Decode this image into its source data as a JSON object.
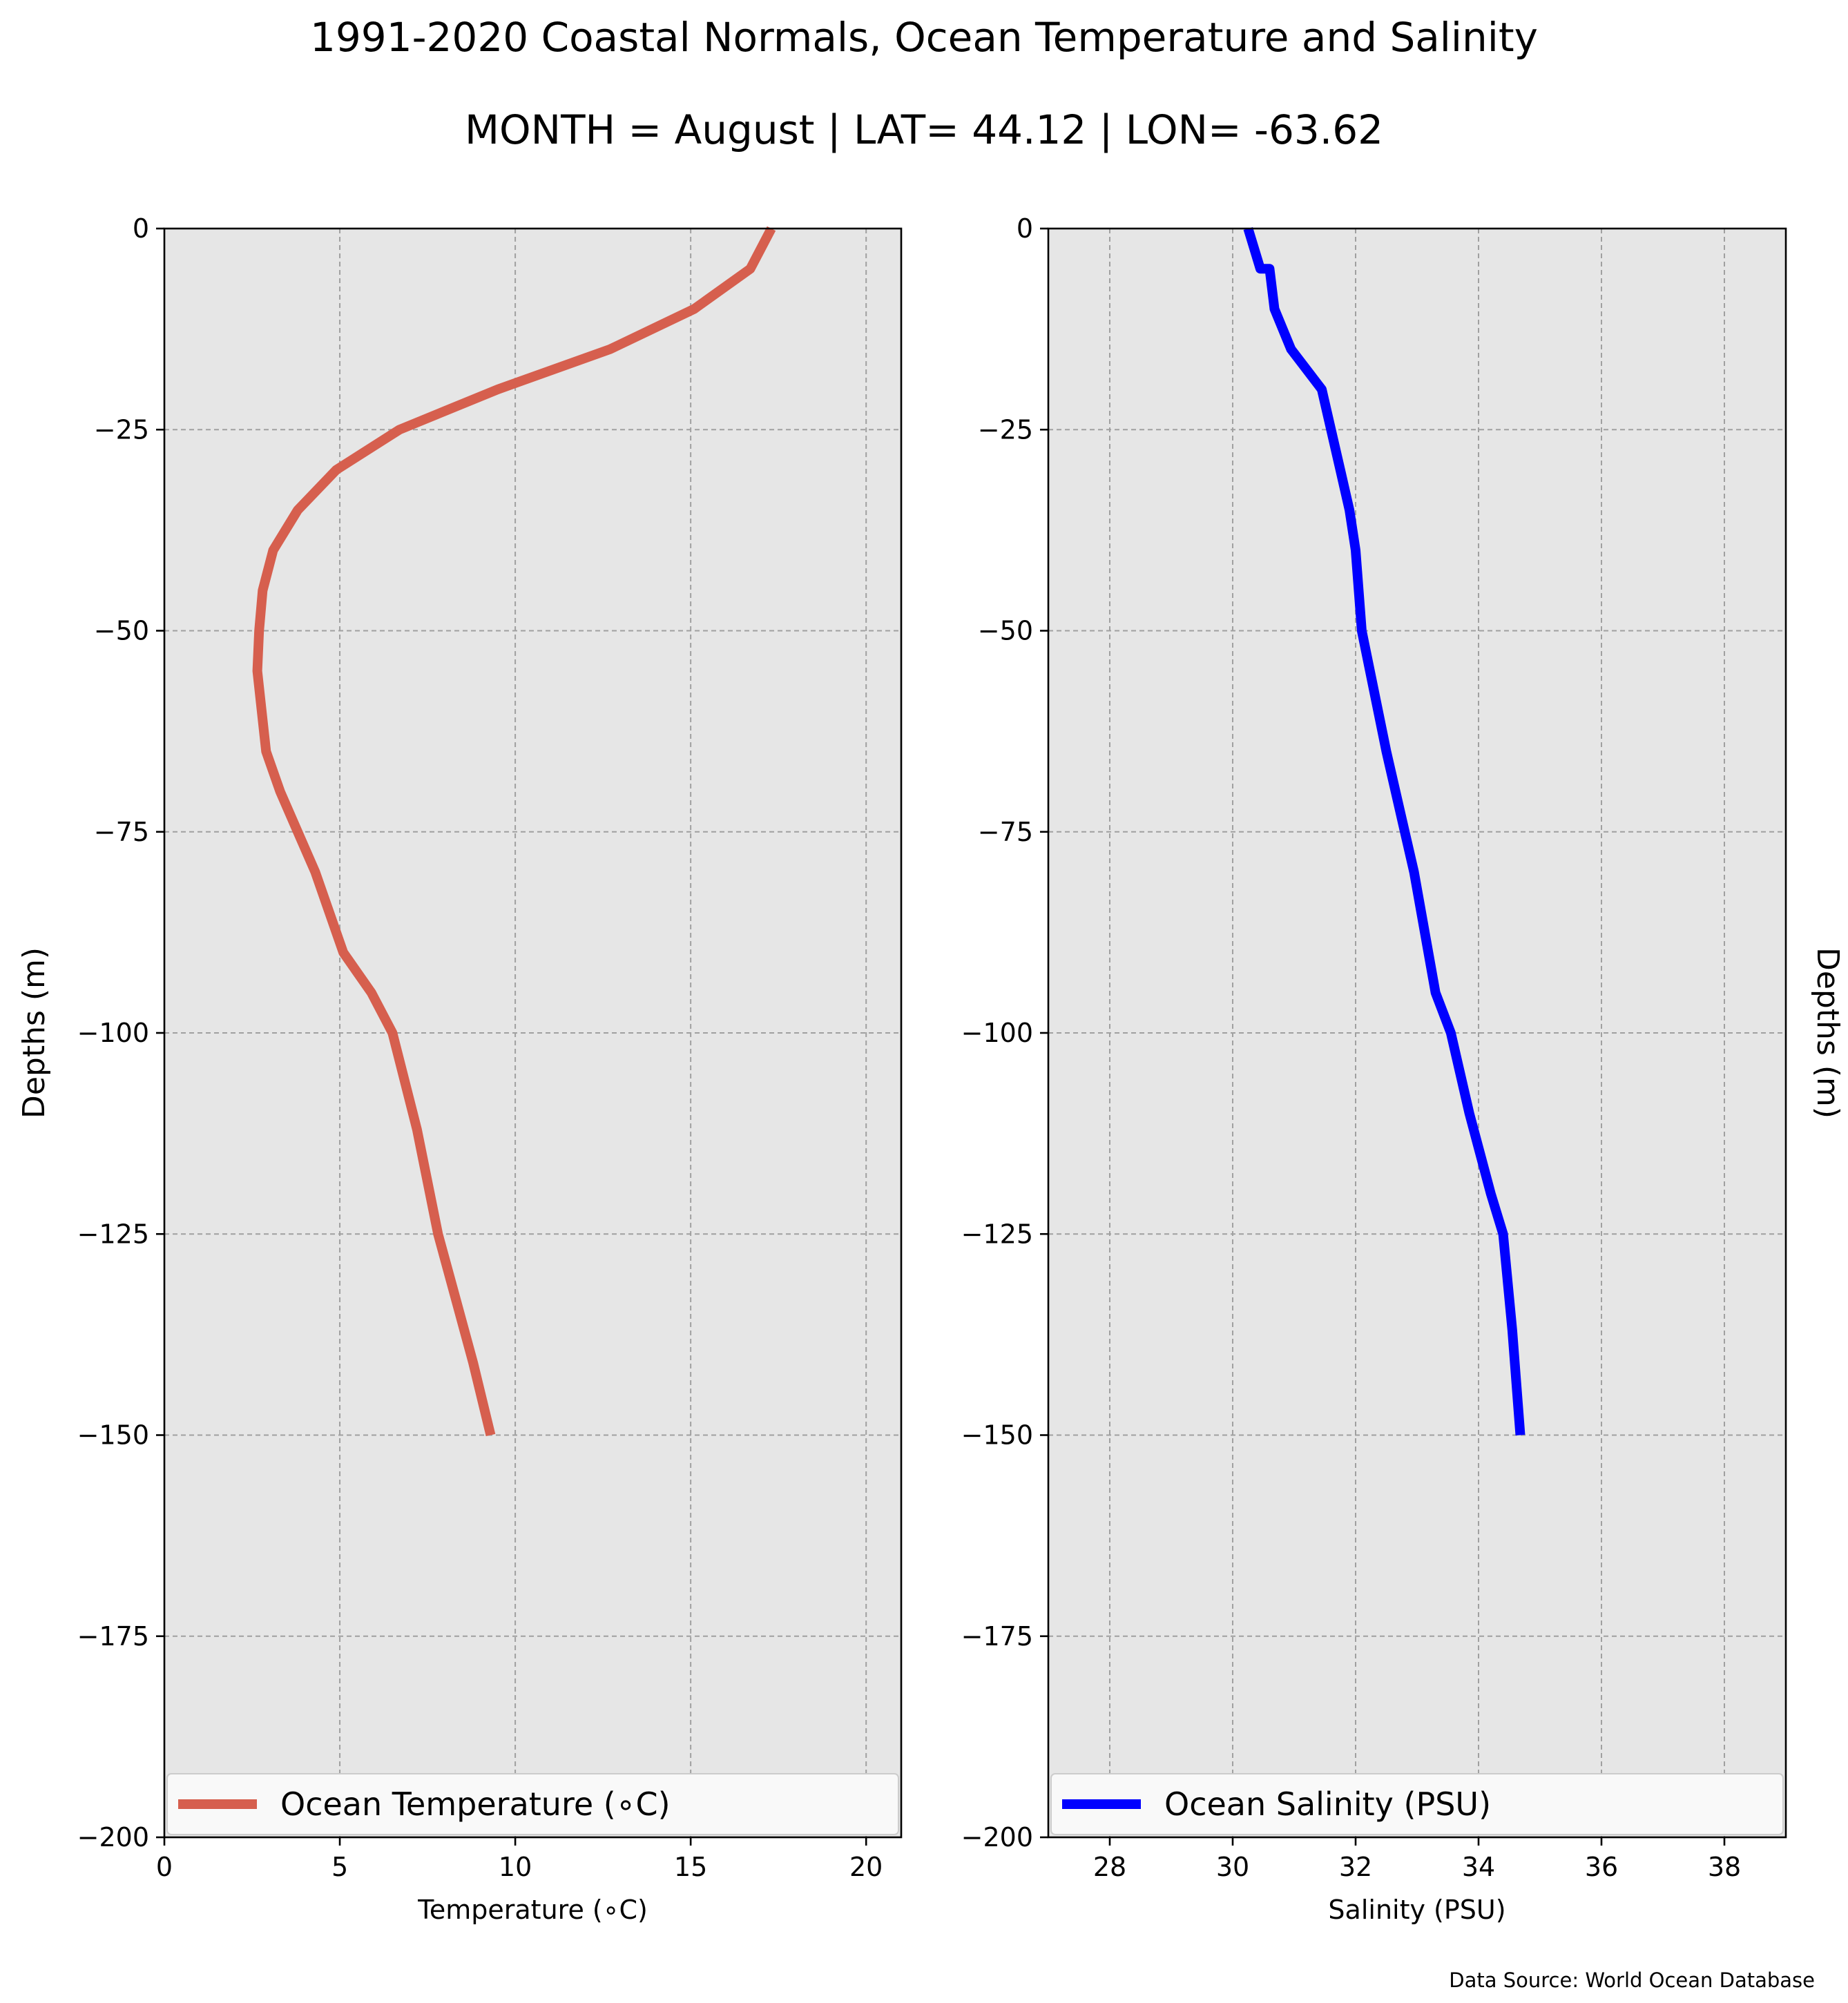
{
  "figure": {
    "title": "1991-2020 Coastal Normals, Ocean Temperature and Salinity",
    "subtitle": "MONTH = August | LAT= 44.12 | LON= -63.62",
    "source_note": "Data Source: World Ocean Database",
    "background": "#e6e6e6"
  },
  "chart_data": [
    {
      "type": "line",
      "title": "",
      "xlabel": "Temperature ($^\\circ$C)",
      "xlabel_display": "Temperature (∘C)",
      "ylabel": "Depths (m)",
      "xlim": [
        0,
        21
      ],
      "ylim": [
        -200,
        0
      ],
      "xticks": [
        0,
        5,
        10,
        15,
        20
      ],
      "yticks": [
        0,
        -25,
        -50,
        -75,
        -100,
        -125,
        -150,
        -175,
        -200
      ],
      "ytick_labels": [
        "0",
        "−25",
        "−50",
        "−75",
        "−100",
        "−125",
        "−150",
        "−175",
        "−200"
      ],
      "grid": true,
      "legend_position": "bottom",
      "series": [
        {
          "name": "Ocean Temperature (∘C)",
          "color": "#d65f4e",
          "x": [
            17.3,
            16.7,
            15.1,
            12.7,
            9.5,
            6.7,
            4.9,
            3.8,
            3.1,
            2.8,
            2.7,
            2.65,
            2.9,
            3.3,
            3.8,
            4.3,
            4.7,
            5.1,
            5.9,
            6.5,
            7.2,
            7.8,
            8.3,
            8.8,
            9.3
          ],
          "y": [
            0,
            -5,
            -10,
            -15,
            -20,
            -25,
            -30,
            -35,
            -40,
            -45,
            -50,
            -55,
            -65,
            -70,
            -75,
            -80,
            -85,
            -90,
            -95,
            -100,
            -112,
            -125,
            -133,
            -141,
            -150
          ]
        }
      ]
    },
    {
      "type": "line",
      "title": "",
      "xlabel": "Salinity (PSU)",
      "ylabel": "Depths (m)",
      "xlim": [
        27,
        39
      ],
      "ylim": [
        -200,
        0
      ],
      "xticks": [
        28,
        30,
        32,
        34,
        36,
        38
      ],
      "yticks": [
        0,
        -25,
        -50,
        -75,
        -100,
        -125,
        -150,
        -175,
        -200
      ],
      "ytick_labels": [
        "0",
        "−25",
        "−50",
        "−75",
        "−100",
        "−125",
        "−150",
        "−175",
        "−200"
      ],
      "grid": true,
      "legend_position": "bottom",
      "series": [
        {
          "name": "Ocean Salinity (PSU)",
          "color": "#0000ff",
          "x": [
            30.25,
            30.45,
            30.6,
            30.68,
            30.95,
            31.45,
            31.6,
            31.75,
            31.9,
            32.0,
            32.1,
            32.5,
            32.8,
            32.95,
            33.3,
            33.55,
            33.85,
            34.2,
            34.4,
            34.55,
            34.68
          ],
          "y": [
            0,
            -5,
            -5,
            -10,
            -15,
            -20,
            -25,
            -30,
            -35,
            -40,
            -50,
            -65,
            -75,
            -80,
            -95,
            -100,
            -110,
            -120,
            -125,
            -137,
            -150
          ]
        }
      ]
    }
  ]
}
